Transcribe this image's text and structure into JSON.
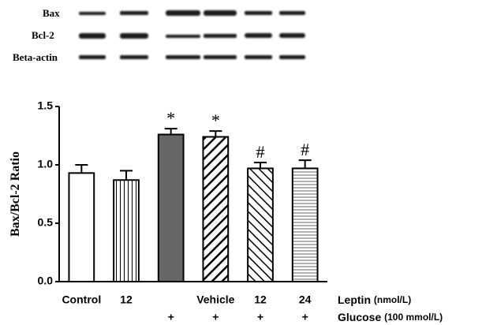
{
  "blot_labels": [
    "Bax",
    "Bcl-2",
    "Beta-actin"
  ],
  "chart_data": {
    "type": "bar",
    "y_label": "Bax/Bcl-2 Ratio",
    "categories": [
      "Control",
      "12",
      null,
      "Vehicle",
      "12",
      "24"
    ],
    "rows": [
      {
        "label": "Leptin",
        "unit": "(nmol/L)"
      },
      {
        "label": "Glucose",
        "unit": "(100 mmol/L)",
        "marks": [
          null,
          null,
          "+",
          "+",
          "+",
          "+"
        ]
      }
    ],
    "values": [
      0.93,
      0.87,
      1.26,
      1.24,
      0.97,
      0.97
    ],
    "errors": [
      0.07,
      0.08,
      0.05,
      0.05,
      0.05,
      0.07
    ],
    "annotations": [
      null,
      null,
      "*",
      "*",
      "#",
      "#"
    ],
    "fills": [
      "white",
      "vertical",
      "#666666",
      "diag-right",
      "diag-left",
      "horizontal"
    ],
    "ylim": [
      0,
      1.5
    ],
    "yticks": [
      {
        "value": 0,
        "label": "0.0"
      },
      0.5,
      {
        "value": 1,
        "label": "1.0"
      },
      1.5
    ]
  }
}
